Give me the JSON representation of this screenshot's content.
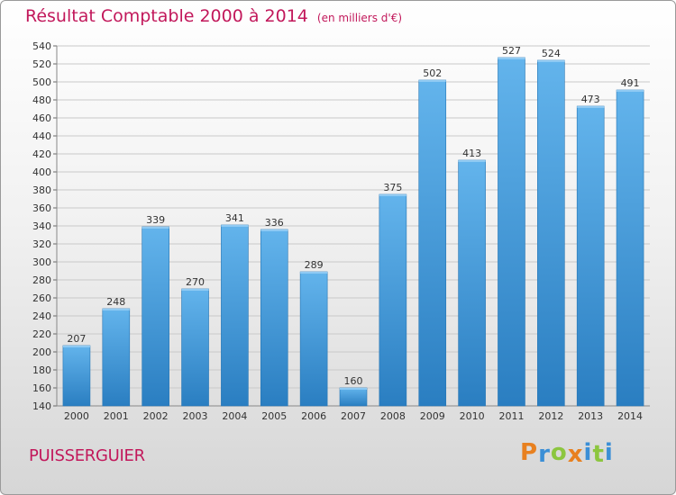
{
  "header": {
    "title": "Résultat Comptable 2000 à 2014",
    "subtitle": "(en milliers d'€)"
  },
  "footer": {
    "commune": "PUISSERGUIER",
    "logo_text": "Proxiti",
    "logo_colors": [
      "#e8801f",
      "#3b8fd6",
      "#8cc63f",
      "#e8801f",
      "#3b8fd6",
      "#8cc63f",
      "#3b8fd6"
    ]
  },
  "colors": {
    "bar_top": "#63b4ec",
    "bar_bottom": "#2a7ec1",
    "grid": "#c9c9c9",
    "axis_text": "#333333",
    "title": "#c2185b"
  },
  "chart_data": {
    "type": "bar",
    "categories": [
      "2000",
      "2001",
      "2002",
      "2003",
      "2004",
      "2005",
      "2006",
      "2007",
      "2008",
      "2009",
      "2010",
      "2011",
      "2012",
      "2013",
      "2014"
    ],
    "values": [
      207,
      248,
      339,
      270,
      341,
      336,
      289,
      160,
      375,
      502,
      413,
      527,
      524,
      473,
      491
    ],
    "title": "Résultat Comptable 2000 à 2014",
    "subtitle": "(en milliers d'€)",
    "xlabel": "",
    "ylabel": "",
    "ylim": [
      140,
      540
    ],
    "yticks": [
      140,
      160,
      180,
      200,
      220,
      240,
      260,
      280,
      300,
      320,
      340,
      360,
      380,
      400,
      420,
      440,
      460,
      480,
      500,
      520,
      540
    ],
    "grid": true,
    "data_labels": true
  }
}
